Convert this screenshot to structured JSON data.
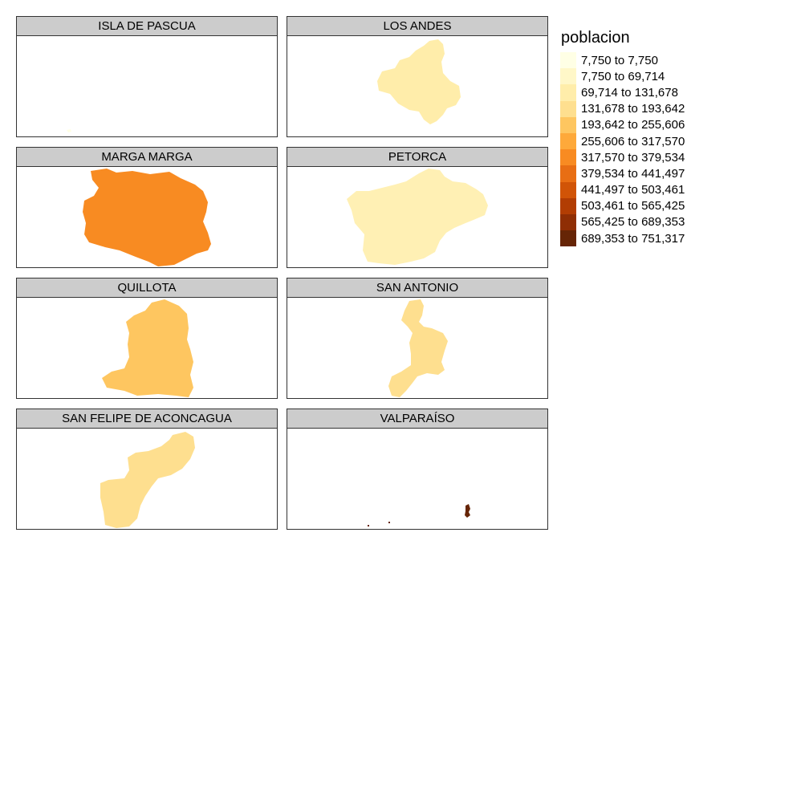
{
  "legend": {
    "title": "poblacion",
    "items": [
      {
        "label": "7,750 to 7,750",
        "color": "#ffffe5"
      },
      {
        "label": "7,750 to 69,714",
        "color": "#fff7c8"
      },
      {
        "label": "69,714 to 131,678",
        "color": "#ffedaa"
      },
      {
        "label": "131,678 to 193,642",
        "color": "#fedf8f"
      },
      {
        "label": "193,642 to 255,606",
        "color": "#fec660"
      },
      {
        "label": "255,606 to 317,570",
        "color": "#fea93a"
      },
      {
        "label": "317,570 to 379,534",
        "color": "#f88b22"
      },
      {
        "label": "379,534 to 441,497",
        "color": "#e86e14"
      },
      {
        "label": "441,497 to 503,461",
        "color": "#d15407"
      },
      {
        "label": "503,461 to 565,425",
        "color": "#b23d03"
      },
      {
        "label": "565,425 to 689,353",
        "color": "#8f2e04"
      },
      {
        "label": "689,353 to 751,317",
        "color": "#662506"
      }
    ]
  },
  "panels": [
    {
      "title": "ISLA DE PASCUA",
      "fill": "#ffffe5"
    },
    {
      "title": "LOS ANDES",
      "fill": "#ffedaa"
    },
    {
      "title": "MARGA MARGA",
      "fill": "#f88b22"
    },
    {
      "title": "PETORCA",
      "fill": "#fff0b4"
    },
    {
      "title": "QUILLOTA",
      "fill": "#fec660"
    },
    {
      "title": "SAN ANTONIO",
      "fill": "#fedf8f"
    },
    {
      "title": "SAN FELIPE DE ACONCAGUA",
      "fill": "#fedf8f"
    },
    {
      "title": "VALPARAÍSO",
      "fill": "#662506"
    }
  ]
}
